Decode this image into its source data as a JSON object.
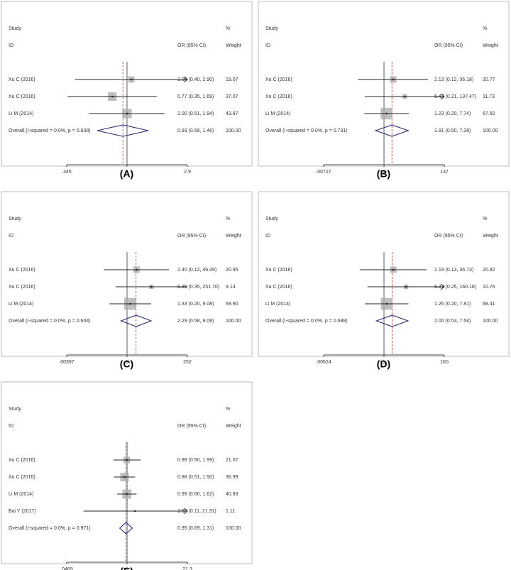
{
  "chart_data": [
    {
      "type": "forest",
      "panel": "(A)",
      "columns": {
        "study": "Study",
        "id": "ID",
        "or": "OR (95% CI)",
        "pct": "%",
        "weight": "Weight"
      },
      "studies": [
        "Xu C (2016)",
        "Xu C (2016)",
        "Li M (2014)"
      ],
      "values": [
        1.08,
        0.77,
        1.0
      ],
      "lower": [
        0.4,
        0.35,
        0.51
      ],
      "upper": [
        2.9,
        1.69,
        1.94
      ],
      "value_labels": [
        "1.08 (0.40, 2.90)",
        "0.77 (0.35, 1.69)",
        "1.00 (0.51, 1.94)"
      ],
      "weights": [
        19.07,
        37.07,
        43.87
      ],
      "weight_labels": [
        "19.07",
        "37.07",
        "43.87"
      ],
      "overall": {
        "label": "Overall  (I-squared = 0.0%, p = 0.838)",
        "value": 0.93,
        "lower": 0.59,
        "upper": 1.46,
        "value_label": "0.93 (0.59, 1.46)",
        "weight": 100,
        "weight_label": "100.00"
      },
      "reference": 1,
      "log": true,
      "xlim": [
        0.345,
        2.9
      ],
      "xticks": [
        {
          "value": 0.345,
          "label": ".345"
        },
        1,
        2.9
      ]
    },
    {
      "type": "forest",
      "panel": "(B)",
      "columns": {
        "study": "Study",
        "id": "ID",
        "or": "OR (95% CI)",
        "pct": "%",
        "weight": "Weight"
      },
      "studies": [
        "Xu C (2016)",
        "Xu C (2016)",
        "Li M (2014)"
      ],
      "values": [
        2.13,
        5.42,
        1.23
      ],
      "lower": [
        0.12,
        0.21,
        0.2
      ],
      "upper": [
        36.18,
        137.47,
        7.74
      ],
      "value_labels": [
        "2.13 (0.12, 36.18)",
        "5.42 (0.21, 137.47)",
        "1.23 (0.20, 7.74)"
      ],
      "weights": [
        20.77,
        11.73,
        67.5
      ],
      "weight_labels": [
        "20.77",
        "11.73",
        "67.50"
      ],
      "overall": {
        "label": "Overall  (I-squared = 0.0%, p = 0.731)",
        "value": 1.91,
        "lower": 0.5,
        "upper": 7.28,
        "value_label": "1.91 (0.50, 7.28)",
        "weight": 100,
        "weight_label": "100.00"
      },
      "reference": 1,
      "log": true,
      "xlim": [
        0.00727,
        137
      ],
      "xticks": [
        {
          "value": 0.00727,
          "label": ".00727"
        },
        1,
        137
      ]
    },
    {
      "type": "forest",
      "panel": "(C)",
      "columns": {
        "study": "Study",
        "id": "ID",
        "or": "OR (95% CI)",
        "pct": "%",
        "weight": "Weight"
      },
      "studies": [
        "Xu C (2016)",
        "Xu C (2016)",
        "Li M (2014)"
      ],
      "values": [
        2.4,
        9.35,
        1.33
      ],
      "lower": [
        0.12,
        0.35,
        0.2
      ],
      "upper": [
        46.39,
        251.7,
        9.08
      ],
      "value_labels": [
        "2.40 (0.12, 46.39)",
        "9.35 (0.35, 251.70)",
        "1.33 (0.20, 9.08)"
      ],
      "weights": [
        20.95,
        9.14,
        69.9
      ],
      "weight_labels": [
        "20.95",
        "9.14",
        "69.90"
      ],
      "overall": {
        "label": "Overall  (I-squared = 0.0%, p = 0.604)",
        "value": 2.29,
        "lower": 0.58,
        "upper": 9.08,
        "value_label": "2.29 (0.58, 9.08)",
        "weight": 100,
        "weight_label": "100.00"
      },
      "reference": 1,
      "log": true,
      "xlim": [
        0.00397,
        252
      ],
      "xticks": [
        {
          "value": 0.00397,
          "label": ".00397"
        },
        1,
        252
      ]
    },
    {
      "type": "forest",
      "panel": "(D)",
      "columns": {
        "study": "Study",
        "id": "ID",
        "or": "OR (95% CI)",
        "pct": "%",
        "weight": "Weight"
      },
      "studies": [
        "Xu C (2016)",
        "Xu C (2016)",
        "Li M (2014)"
      ],
      "values": [
        2.19,
        6.37,
        1.26
      ],
      "lower": [
        0.13,
        0.25,
        0.2
      ],
      "upper": [
        36.73,
        160.18,
        7.81
      ],
      "value_labels": [
        "2.19 (0.13, 36.73)",
        "6.37 (0.25, 160.18)",
        "1.26 (0.20, 7.81)"
      ],
      "weights": [
        20.82,
        10.76,
        68.41
      ],
      "weight_labels": [
        "20.82",
        "10.76",
        "68.41"
      ],
      "overall": {
        "label": "Overall  (I-squared = 0.0%, p = 0.688)",
        "value": 2.0,
        "lower": 0.53,
        "upper": 7.54,
        "value_label": "2.00 (0.53, 7.54)",
        "weight": 100,
        "weight_label": "100.00"
      },
      "reference": 1,
      "log": true,
      "xlim": [
        0.00624,
        160
      ],
      "xticks": [
        {
          "value": 0.00624,
          "label": ".00624"
        },
        1,
        160
      ]
    },
    {
      "type": "forest",
      "panel": "(E)",
      "columns": {
        "study": "Study",
        "id": "ID",
        "or": "OR (95% CI)",
        "pct": "%",
        "weight": "Weight"
      },
      "studies": [
        "Xu C (2016)",
        "Xu C (2016)",
        "Li M (2014)",
        "Bai Y (2017)"
      ],
      "values": [
        0.99,
        0.88,
        0.99,
        1.5
      ],
      "lower": [
        0.5,
        0.51,
        0.6,
        0.11
      ],
      "upper": [
        1.99,
        1.5,
        1.62,
        21.31
      ],
      "value_labels": [
        "0.99 (0.50, 1.99)",
        "0.88 (0.51, 1.50)",
        "0.99 (0.60, 1.62)",
        "1.50 (0.11, 21.31)"
      ],
      "weights": [
        21.07,
        36.99,
        40.83,
        1.11
      ],
      "weight_labels": [
        "21.07",
        "36.99",
        "40.83",
        "1.11"
      ],
      "overall": {
        "label": "Overall  (I-squared = 0.0%, p = 0.971)",
        "value": 0.95,
        "lower": 0.69,
        "upper": 1.31,
        "value_label": "0.95 (0.69, 1.31)",
        "weight": 100,
        "weight_label": "100.00"
      },
      "reference": 1,
      "log": true,
      "xlim": [
        0.0469,
        21.3
      ],
      "xticks": [
        {
          "value": 0.0469,
          "label": ".0469"
        },
        1,
        21.3
      ]
    }
  ]
}
